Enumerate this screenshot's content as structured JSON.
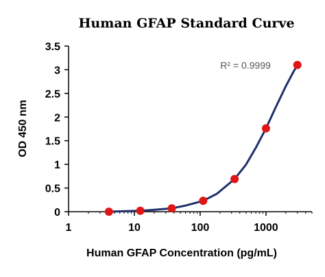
{
  "chart_data": {
    "type": "scatter",
    "title": "Human GFAP Standard Curve",
    "xlabel": "Human GFAP Concentration (pg/mL)",
    "ylabel": "OD 450 nm",
    "xscale": "log",
    "xlim": [
      1,
      5000
    ],
    "ylim": [
      0,
      3.5
    ],
    "x_ticks": [
      1,
      10,
      100,
      1000
    ],
    "x_tick_labels": [
      "1",
      "10",
      "100",
      "1000"
    ],
    "y_ticks": [
      0,
      0.5,
      1,
      1.5,
      2,
      2.5,
      3,
      3.5
    ],
    "y_tick_labels": [
      "0",
      "0.5",
      "1",
      "1.5",
      "2",
      "2.5",
      "3",
      "3.5"
    ],
    "grid": false,
    "annotation": "R² = 0.9999",
    "points": [
      {
        "x": 4.1,
        "y": 0.0
      },
      {
        "x": 12.3,
        "y": 0.02
      },
      {
        "x": 37,
        "y": 0.07
      },
      {
        "x": 111,
        "y": 0.23
      },
      {
        "x": 333,
        "y": 0.69
      },
      {
        "x": 1000,
        "y": 1.76
      },
      {
        "x": 3000,
        "y": 3.1
      }
    ],
    "fit_curve": {
      "x": [
        4.1,
        7,
        12.3,
        20,
        37,
        60,
        111,
        180,
        333,
        500,
        700,
        1000,
        1400,
        2000,
        2600,
        3000
      ],
      "y": [
        0.0,
        0.01,
        0.02,
        0.04,
        0.07,
        0.13,
        0.23,
        0.38,
        0.69,
        1.0,
        1.35,
        1.76,
        2.2,
        2.65,
        2.95,
        3.1
      ]
    },
    "colors": {
      "point": "#e01616",
      "curve": "#1f2f6b",
      "axis": "#000000"
    }
  }
}
